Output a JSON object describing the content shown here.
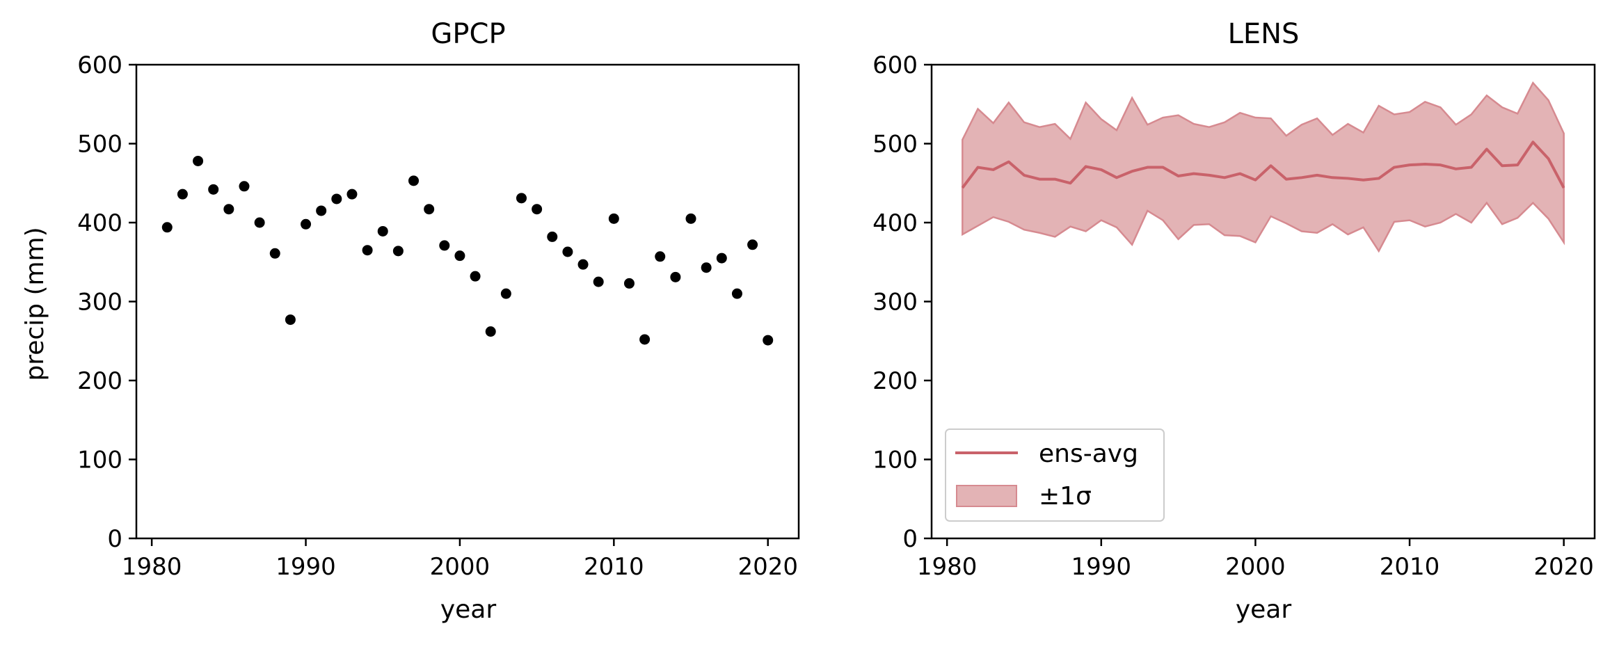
{
  "chart_data": [
    {
      "type": "scatter",
      "title": "GPCP",
      "xlabel": "year",
      "ylabel": "precip (mm)",
      "xlim": [
        1979,
        2022
      ],
      "ylim": [
        0,
        600
      ],
      "xticks": [
        1980,
        1990,
        2000,
        2010,
        2020
      ],
      "yticks": [
        0,
        100,
        200,
        300,
        400,
        500,
        600
      ],
      "xtick_labels": [
        "1980",
        "1990",
        "2000",
        "2010",
        "2020"
      ],
      "ytick_labels": [
        "0",
        "100",
        "200",
        "300",
        "400",
        "500",
        "600"
      ],
      "marker_color": "#000000",
      "grid": false,
      "x": [
        1981,
        1982,
        1983,
        1984,
        1985,
        1986,
        1987,
        1988,
        1989,
        1990,
        1991,
        1992,
        1993,
        1994,
        1995,
        1996,
        1997,
        1998,
        1999,
        2000,
        2001,
        2002,
        2003,
        2004,
        2005,
        2006,
        2007,
        2008,
        2009,
        2010,
        2011,
        2012,
        2013,
        2014,
        2015,
        2016,
        2017,
        2018,
        2019,
        2020
      ],
      "y": [
        394,
        436,
        478,
        442,
        417,
        446,
        400,
        361,
        277,
        398,
        415,
        430,
        436,
        365,
        389,
        364,
        453,
        417,
        371,
        358,
        332,
        262,
        310,
        431,
        417,
        382,
        363,
        347,
        325,
        405,
        323,
        252,
        357,
        331,
        405,
        343,
        355,
        310,
        372,
        251
      ]
    },
    {
      "type": "area",
      "title": "LENS",
      "xlabel": "year",
      "xlim": [
        1979,
        2022
      ],
      "ylim": [
        0,
        600
      ],
      "xticks": [
        1980,
        1990,
        2000,
        2010,
        2020
      ],
      "yticks": [
        0,
        100,
        200,
        300,
        400,
        500,
        600
      ],
      "xtick_labels": [
        "1980",
        "1990",
        "2000",
        "2010",
        "2020"
      ],
      "ytick_labels": [
        "0",
        "100",
        "200",
        "300",
        "400",
        "500",
        "600"
      ],
      "grid": false,
      "legend_position": "lower-left",
      "line_color": "#c9626a",
      "band_fill": "#e3b3b5",
      "band_edge": "#d68a90",
      "x": [
        1981,
        1982,
        1983,
        1984,
        1985,
        1986,
        1987,
        1988,
        1989,
        1990,
        1991,
        1992,
        1993,
        1994,
        1995,
        1996,
        1997,
        1998,
        1999,
        2000,
        2001,
        2002,
        2003,
        2004,
        2005,
        2006,
        2007,
        2008,
        2009,
        2010,
        2011,
        2012,
        2013,
        2014,
        2015,
        2016,
        2017,
        2018,
        2019,
        2020
      ],
      "series": [
        {
          "name": "ens-avg",
          "values": [
            444,
            470,
            467,
            477,
            460,
            455,
            455,
            450,
            471,
            467,
            457,
            465,
            470,
            470,
            459,
            462,
            460,
            457,
            462,
            454,
            472,
            455,
            457,
            460,
            457,
            456,
            454,
            456,
            470,
            473,
            474,
            473,
            468,
            470,
            493,
            472,
            473,
            502,
            481,
            444
          ]
        },
        {
          "name": "±1σ",
          "upper": [
            505,
            544,
            526,
            552,
            527,
            521,
            525,
            506,
            552,
            531,
            517,
            558,
            524,
            533,
            536,
            525,
            521,
            527,
            539,
            533,
            532,
            510,
            524,
            532,
            511,
            525,
            514,
            548,
            537,
            540,
            553,
            546,
            524,
            537,
            561,
            546,
            538,
            577,
            555,
            513
          ],
          "lower": [
            385,
            396,
            407,
            401,
            391,
            387,
            382,
            395,
            389,
            403,
            394,
            372,
            415,
            403,
            379,
            397,
            398,
            384,
            383,
            375,
            408,
            399,
            389,
            387,
            398,
            385,
            394,
            364,
            401,
            403,
            395,
            400,
            411,
            400,
            425,
            398,
            406,
            425,
            405,
            375
          ]
        }
      ]
    }
  ]
}
